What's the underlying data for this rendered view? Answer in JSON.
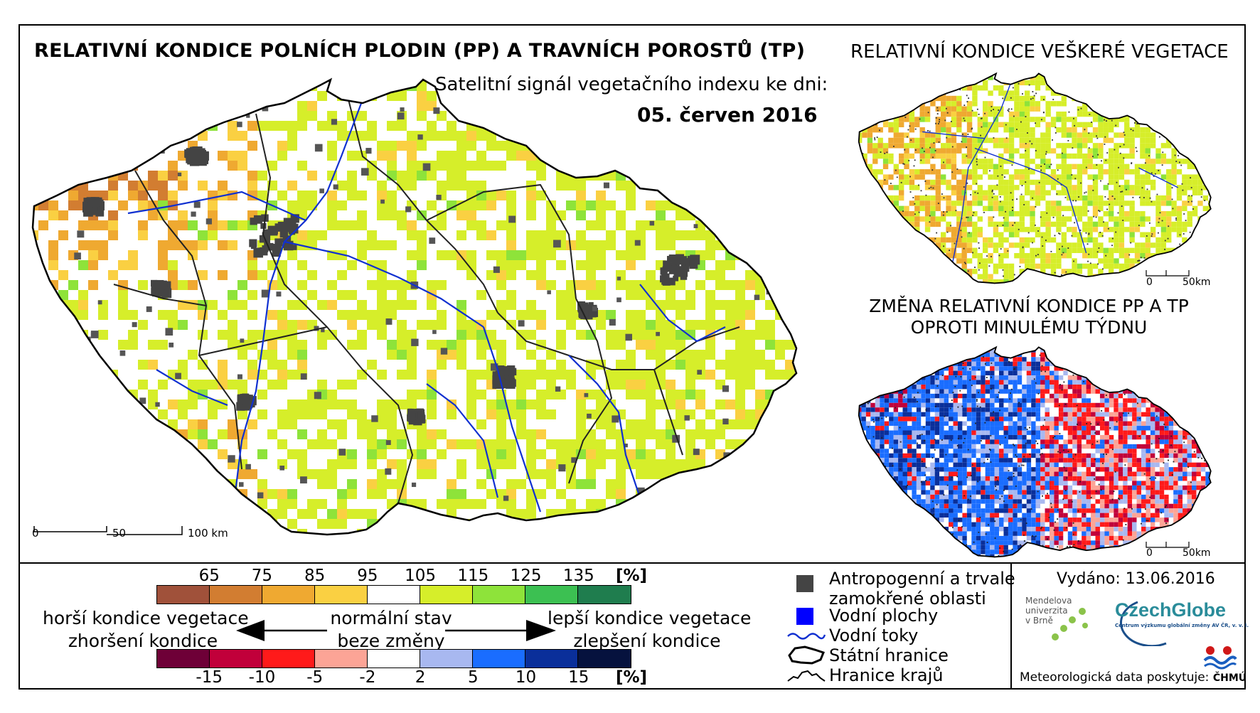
{
  "header": {
    "title": "RELATIVNÍ KONDICE POLNÍCH PLODIN (PP) A TRAVNÍCH POROSTŮ (TP)",
    "subtitle": "Satelitní signál vegetačního indexu ke dni:",
    "date": "05. červen 2016"
  },
  "right_maps": {
    "top_title": "RELATIVNÍ KONDICE VEŠKERÉ VEGETACE",
    "bottom_title_line1": "ZMĚNA RELATIVNÍ KONDICE PP A TP",
    "bottom_title_line2": "OPROTI MINULÉMU TÝDNU",
    "scale_labels": [
      "0",
      "50km"
    ]
  },
  "main_map": {
    "scale_labels": [
      "0",
      "50",
      "100 km"
    ]
  },
  "condition_legend": {
    "values": [
      "65",
      "75",
      "85",
      "95",
      "105",
      "115",
      "125",
      "135"
    ],
    "unit": "[%]",
    "colors": [
      "#a0513a",
      "#d27d31",
      "#efa931",
      "#fad042",
      "#ffffff",
      "#d6ee2a",
      "#8ee33a",
      "#3cc052",
      "#1f7d4e"
    ]
  },
  "change_legend": {
    "values": [
      "-15",
      "-10",
      "-5",
      "-2",
      "2",
      "5",
      "10",
      "15"
    ],
    "unit": "[%]",
    "colors": [
      "#6e0037",
      "#c1003a",
      "#ff1a1a",
      "#fca496",
      "#ffffff",
      "#a8b8f0",
      "#1a6dff",
      "#0a2f9a",
      "#06123e"
    ]
  },
  "descriptions": {
    "worse_line1": "horší kondice vegetace",
    "worse_line2": "zhoršení kondice",
    "normal_line1": "normální stav",
    "normal_line2": "beze změny",
    "better_line1": "lepší kondice vegetace",
    "better_line2": "zlepšení kondice"
  },
  "symbol_legend": {
    "anthropogenic_line1": "Antropogenní a trvale",
    "anthropogenic_line2": "zamokřené oblasti",
    "water_areas": "Vodní plochy",
    "rivers": "Vodní toky",
    "state_border": "Státní hranice",
    "region_border": "Hranice krajů"
  },
  "footer": {
    "issued": "Vydáno: 13.06.2016",
    "mendel_line1": "Mendelova",
    "mendel_line2": "univerzita",
    "mendel_line3": "v Brně",
    "czechglobe": "CzechGlobe",
    "czechglobe_sub": "Centrum výzkumu globální změny AV ČR, v. v. i.",
    "meteo": "Meteorologická data poskytuje:",
    "chmu": "ČHMÚ"
  },
  "colors": {
    "anthropogenic": "#444444",
    "water": "#0000ff",
    "river": "#1030d0"
  }
}
